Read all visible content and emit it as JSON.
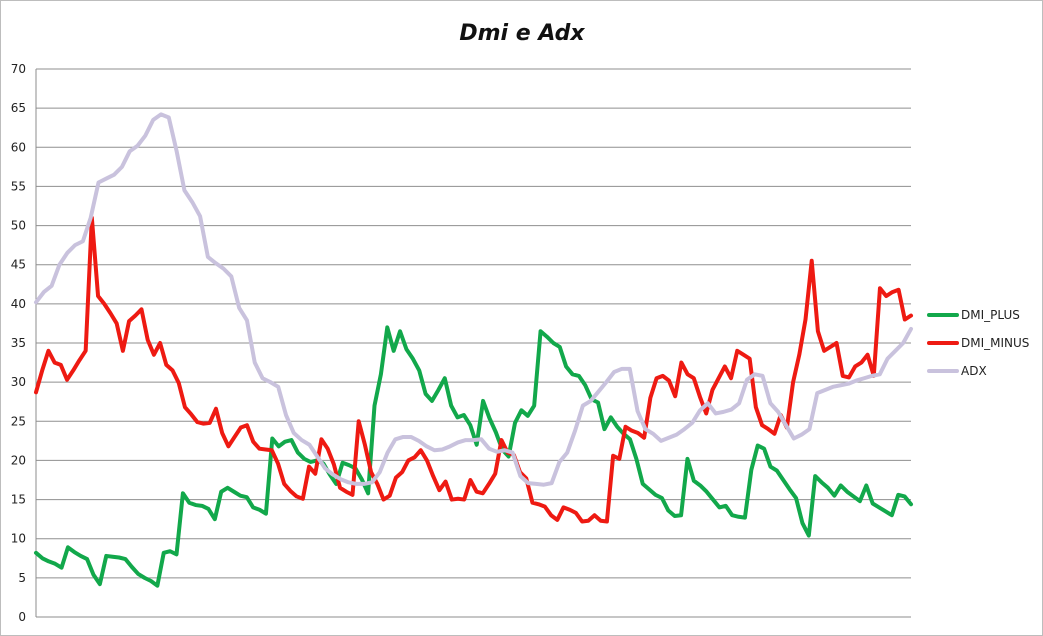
{
  "chart_data": {
    "type": "line",
    "title": "Dmi e Adx",
    "xlabel": "",
    "ylabel": "",
    "ylim": [
      0,
      70
    ],
    "yticks": [
      0,
      5,
      10,
      15,
      20,
      25,
      30,
      35,
      40,
      45,
      50,
      55,
      60,
      65,
      70
    ],
    "grid": "horizontal",
    "legend_position": "right",
    "series": [
      {
        "name": "DMI_PLUS",
        "color": "#12a84b",
        "values": [
          8.2,
          7.5,
          7.1,
          6.8,
          6.3,
          8.9,
          8.3,
          7.8,
          7.4,
          5.4,
          4.2,
          7.8,
          7.7,
          7.6,
          7.4,
          6.4,
          5.5,
          5.0,
          4.6,
          4.0,
          8.2,
          8.4,
          8.0,
          15.8,
          14.6,
          14.3,
          14.2,
          13.8,
          12.5,
          16.0,
          16.5,
          16.0,
          15.5,
          15.3,
          14.0,
          13.7,
          13.2,
          22.8,
          21.8,
          22.4,
          22.6,
          21.0,
          20.2,
          19.8,
          20.0,
          19.6,
          18.2,
          17.0,
          19.7,
          19.4,
          19.0,
          17.6,
          15.8,
          27.0,
          31.0,
          37.0,
          34.0,
          36.5,
          34.2,
          33.0,
          31.5,
          28.5,
          27.6,
          29.0,
          30.5,
          27.0,
          25.5,
          25.8,
          24.5,
          22.0,
          27.6,
          25.4,
          23.6,
          21.4,
          20.5,
          24.8,
          26.4,
          25.7,
          27.0,
          36.5,
          35.8,
          35.0,
          34.5,
          32.0,
          31.0,
          30.8,
          29.6,
          27.8,
          27.4,
          24.0,
          25.5,
          24.3,
          23.4,
          22.7,
          20.2,
          17.0,
          16.3,
          15.6,
          15.2,
          13.6,
          12.9,
          13.0,
          20.2,
          17.4,
          16.8,
          16.0,
          15.0,
          14.0,
          14.2,
          13.0,
          12.8,
          12.7,
          18.8,
          21.9,
          21.5,
          19.2,
          18.7,
          17.5,
          16.3,
          15.2,
          12.0,
          10.4,
          18.0,
          17.2,
          16.5,
          15.5,
          16.8,
          16.0,
          15.4,
          14.8,
          16.8,
          14.5,
          14.0,
          13.5,
          13.0,
          15.6,
          15.4,
          14.4
        ]
      },
      {
        "name": "DMI_MINUS",
        "color": "#ee1a12",
        "values": [
          28.7,
          31.5,
          34.0,
          32.5,
          32.2,
          30.3,
          31.5,
          32.8,
          34.0,
          51.0,
          41.0,
          40.0,
          38.8,
          37.5,
          34.0,
          37.8,
          38.5,
          39.3,
          35.4,
          33.5,
          35.0,
          32.2,
          31.5,
          29.9,
          26.8,
          25.9,
          24.9,
          24.7,
          24.8,
          26.6,
          23.5,
          21.8,
          23.0,
          24.2,
          24.5,
          22.4,
          21.5,
          21.4,
          21.3,
          19.6,
          17.0,
          16.1,
          15.4,
          15.1,
          19.2,
          18.3,
          22.7,
          21.5,
          19.5,
          16.5,
          16.0,
          15.6,
          25.0,
          22.0,
          18.5,
          17.0,
          15.0,
          15.5,
          17.8,
          18.5,
          20.0,
          20.4,
          21.3,
          20.0,
          18.0,
          16.2,
          17.3,
          15.0,
          15.1,
          15.0,
          17.5,
          16.0,
          15.8,
          17.0,
          18.3,
          22.6,
          21.0,
          20.7,
          18.5,
          17.7,
          14.6,
          14.4,
          14.1,
          13.0,
          12.4,
          14.0,
          13.7,
          13.3,
          12.2,
          12.3,
          13.0,
          12.3,
          12.2,
          20.6,
          20.2,
          24.3,
          23.8,
          23.5,
          22.9,
          28.0,
          30.5,
          30.8,
          30.2,
          28.2,
          32.5,
          31.0,
          30.5,
          28.1,
          26.0,
          29.0,
          30.5,
          32.0,
          30.5,
          34.0,
          33.5,
          33.0,
          26.8,
          24.5,
          24.0,
          23.4,
          25.8,
          24.2,
          30.0,
          33.5,
          38.0,
          45.5,
          36.5,
          34.0,
          34.5,
          35.0,
          30.8,
          30.6,
          32.0,
          32.5,
          33.5,
          30.8,
          42.0,
          41.0,
          41.5,
          41.8,
          38.0,
          38.5
        ]
      },
      {
        "name": "ADX",
        "color": "#c9c2dd",
        "values": [
          40.2,
          41.5,
          42.3,
          45.0,
          46.5,
          47.5,
          48.0,
          51.0,
          55.5,
          56.0,
          56.5,
          57.5,
          59.5,
          60.2,
          61.5,
          63.5,
          64.2,
          63.8,
          59.5,
          54.5,
          53.0,
          51.2,
          46.0,
          45.2,
          44.5,
          43.5,
          39.5,
          37.9,
          32.5,
          30.5,
          30.0,
          29.4,
          25.8,
          23.5,
          22.6,
          22.0,
          20.5,
          19.0,
          18.2,
          17.6,
          17.2,
          17.0,
          17.0,
          17.2,
          18.5,
          21.0,
          22.7,
          23.0,
          23.0,
          22.5,
          21.8,
          21.3,
          21.4,
          21.8,
          22.3,
          22.6,
          22.6,
          22.7,
          21.5,
          21.1,
          21.3,
          21.0,
          18.0,
          17.1,
          17.0,
          16.9,
          17.1,
          19.8,
          21.0,
          23.8,
          27.0,
          27.6,
          28.8,
          30.0,
          31.3,
          31.7,
          31.7,
          26.3,
          24.0,
          23.4,
          22.5,
          22.9,
          23.3,
          24.0,
          24.8,
          26.4,
          27.3,
          26.0,
          26.2,
          26.5,
          27.3,
          30.3,
          31.0,
          30.8,
          27.3,
          26.2,
          24.5,
          22.8,
          23.3,
          24.0,
          28.6,
          29.0,
          29.4,
          29.6,
          29.8,
          30.2,
          30.5,
          30.8,
          31.0,
          33.0,
          34.0,
          35.0,
          36.8
        ]
      }
    ]
  }
}
